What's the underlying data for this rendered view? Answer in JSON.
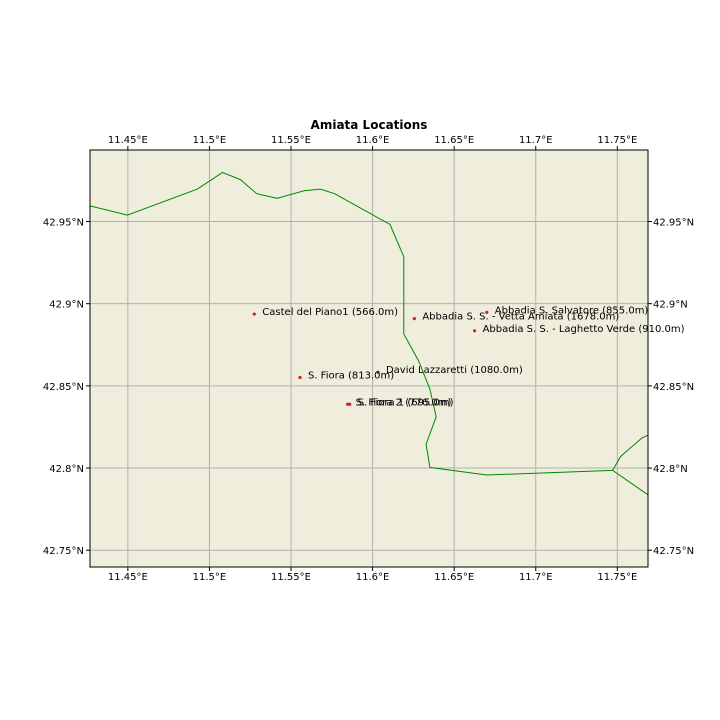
{
  "title": "Amiata Locations",
  "colors": {
    "land": "#efeedc",
    "border": "#008800",
    "grid": "#b0b0b0",
    "marker": "#cc2222",
    "frame": "#000000"
  },
  "chart_data": {
    "type": "map",
    "title": "Amiata Locations",
    "lon_range": [
      11.4268,
      11.7688
    ],
    "lat_range": [
      42.7398,
      42.9935
    ],
    "lon_ticks": [
      {
        "value": 11.45,
        "label": "11.45°E"
      },
      {
        "value": 11.5,
        "label": "11.5°E"
      },
      {
        "value": 11.55,
        "label": "11.55°E"
      },
      {
        "value": 11.6,
        "label": "11.6°E"
      },
      {
        "value": 11.65,
        "label": "11.65°E"
      },
      {
        "value": 11.7,
        "label": "11.7°E"
      },
      {
        "value": 11.75,
        "label": "11.75°E"
      }
    ],
    "lat_ticks": [
      {
        "value": 42.75,
        "label": "42.75°N"
      },
      {
        "value": 42.8,
        "label": "42.8°N"
      },
      {
        "value": 42.85,
        "label": "42.85°N"
      },
      {
        "value": 42.9,
        "label": "42.9°N"
      },
      {
        "value": 42.95,
        "label": "42.95°N"
      }
    ],
    "grid": true,
    "borders": [
      [
        [
          11.4268,
          42.9595
        ],
        [
          11.4497,
          42.9539
        ],
        [
          11.4926,
          42.9697
        ],
        [
          11.508,
          42.9799
        ],
        [
          11.519,
          42.9755
        ],
        [
          11.529,
          42.9669
        ],
        [
          11.5414,
          42.9641
        ],
        [
          11.558,
          42.9687
        ],
        [
          11.568,
          42.9697
        ],
        [
          11.5768,
          42.9669
        ],
        [
          11.6107,
          42.9482
        ],
        [
          11.6191,
          42.9286
        ],
        [
          11.6191,
          42.8816
        ],
        [
          11.6284,
          42.8648
        ],
        [
          11.6351,
          42.848
        ],
        [
          11.639,
          42.8312
        ],
        [
          11.6328,
          42.8145
        ],
        [
          11.6351,
          42.8004
        ],
        [
          11.6699,
          42.7958
        ],
        [
          11.7471,
          42.7986
        ],
        [
          11.752,
          42.807
        ],
        [
          11.765,
          42.8182
        ],
        [
          11.7688,
          42.82
        ]
      ],
      [
        [
          11.7471,
          42.7986
        ],
        [
          11.7688,
          42.7837
        ]
      ]
    ],
    "locations": [
      {
        "name": "Castel del Piano1 (566.0m)",
        "lon": 11.5275,
        "lat": 42.8937
      },
      {
        "name": "Abbadia S. Salvatore (855.0m)",
        "lon": 11.67,
        "lat": 42.8947
      },
      {
        "name": "Abbadia S. S. - Vetta Amiata (1678.0m)",
        "lon": 11.6256,
        "lat": 42.8909
      },
      {
        "name": "Abbadia S. S. - Laghetto Verde (910.0m)",
        "lon": 11.6625,
        "lat": 42.8835
      },
      {
        "name": "David Lazzaretti (1080.0m)",
        "lon": 11.6033,
        "lat": 42.8583
      },
      {
        "name": "S. Fiora (813.0m)",
        "lon": 11.5555,
        "lat": 42.8551
      },
      {
        "name": "S. Fiora 2 (776.0m)",
        "lon": 11.5847,
        "lat": 42.8388
      },
      {
        "name": "S. Fiora 1 (695.0m)",
        "lon": 11.586,
        "lat": 42.8388
      }
    ]
  }
}
